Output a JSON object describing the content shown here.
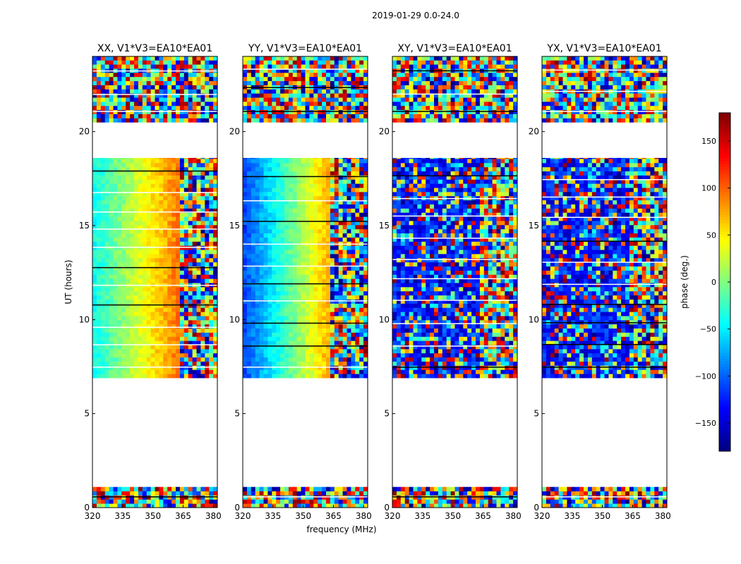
{
  "figure": {
    "suptitle": "2019-01-29 0.0-24.0",
    "xlabel": "frequency (MHz)",
    "ylabel": "UT (hours)",
    "colorbar_label": "phase (deg.)"
  },
  "chart_data": {
    "type": "heatmap",
    "x_range": [
      320,
      382
    ],
    "y_range": [
      0,
      24
    ],
    "x_ticks": [
      320,
      335,
      350,
      365,
      380
    ],
    "y_ticks": [
      0,
      5,
      10,
      15,
      20
    ],
    "colorbar": {
      "range": [
        -180,
        180
      ],
      "ticks": [
        -150,
        -100,
        -50,
        0,
        50,
        100,
        150
      ],
      "tick_labels": [
        "−150",
        "−100",
        "−50",
        "0",
        "50",
        "100",
        "150"
      ],
      "colormap": "jet"
    },
    "data_blocks_hours": [
      [
        0.0,
        1.1
      ],
      [
        6.9,
        18.6
      ],
      [
        20.5,
        24.0
      ]
    ],
    "panels": [
      {
        "title": "XX, V1*V3=EA10*EA01",
        "pol": "XX"
      },
      {
        "title": "YY, V1*V3=EA10*EA01",
        "pol": "YY"
      },
      {
        "title": "XY, V1*V3=EA10*EA01",
        "pol": "XY"
      },
      {
        "title": "YX, V1*V3=EA10*EA01",
        "pol": "YX"
      }
    ]
  },
  "colors": {
    "jet_dark_blue": "#00007f",
    "jet_cyan": "#00ffff",
    "jet_yellow": "#ffff00",
    "jet_dark_red": "#7f0000"
  }
}
